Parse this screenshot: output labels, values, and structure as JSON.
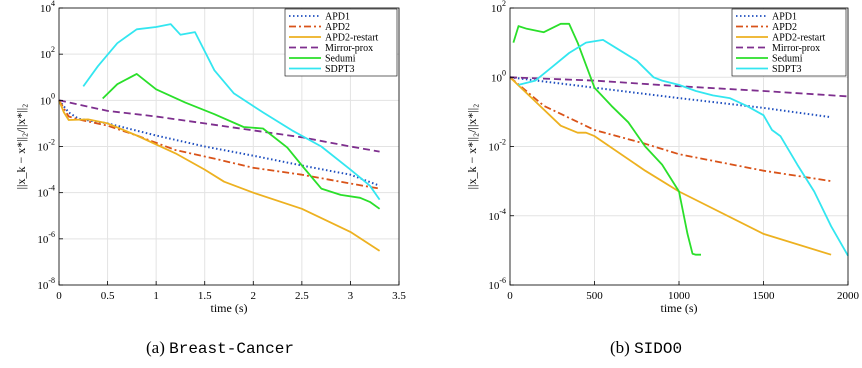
{
  "chart_data": [
    {
      "type": "line",
      "caption_prefix": "(a)",
      "caption_name": "Breast-Cancer",
      "xlabel": "time (s)",
      "ylabel": "||x_k − x*||₂/||x*||₂",
      "xlim": [
        0,
        3.5
      ],
      "ylim_log10": [
        -8,
        4
      ],
      "y_scale": "log",
      "grid": true,
      "legend_position": "top-right",
      "xticks": [
        0,
        0.5,
        1,
        1.5,
        2,
        2.5,
        3,
        3.5
      ],
      "xtick_labels": [
        "0",
        "0.5",
        "1",
        "1.5",
        "2",
        "2.5",
        "3",
        "3.5"
      ],
      "yticks_exp": [
        -8,
        -6,
        -4,
        -2,
        0,
        2,
        4
      ],
      "series": [
        {
          "name": "APD1",
          "color": "#1f4fbf",
          "dash": "dotted",
          "x": [
            0,
            0.1,
            0.2,
            0.5,
            1,
            1.5,
            2,
            2.5,
            3,
            3.3
          ],
          "y": [
            1,
            0.3,
            0.16,
            0.1,
            0.03,
            0.01,
            0.004,
            0.0015,
            0.0006,
            0.0002
          ]
        },
        {
          "name": "APD2",
          "color": "#d95319",
          "dash": "dashdot",
          "x": [
            0,
            0.1,
            0.2,
            0.5,
            0.8,
            1.2,
            1.6,
            2,
            2.5,
            3,
            3.3
          ],
          "y": [
            1,
            0.2,
            0.15,
            0.08,
            0.03,
            0.007,
            0.003,
            0.0012,
            0.0006,
            0.00025,
            0.00015
          ]
        },
        {
          "name": "APD2-restart",
          "color": "#edb120",
          "dash": "solid",
          "x": [
            0,
            0.05,
            0.1,
            0.3,
            0.5,
            0.8,
            1.2,
            1.5,
            1.7,
            2,
            2.5,
            3,
            3.3
          ],
          "y": [
            1,
            0.3,
            0.14,
            0.15,
            0.1,
            0.03,
            0.005,
            0.001,
            0.0003,
            0.0001,
            2e-05,
            2e-06,
            3e-07
          ]
        },
        {
          "name": "Mirror-prox",
          "color": "#7e2f8e",
          "dash": "dashed",
          "x": [
            0,
            0.5,
            1,
            1.5,
            2,
            2.5,
            3,
            3.3
          ],
          "y": [
            1,
            0.35,
            0.2,
            0.1,
            0.05,
            0.025,
            0.01,
            0.006
          ]
        },
        {
          "name": "Sedumi",
          "color": "#2adf2a",
          "dash": "solid",
          "x": [
            0.45,
            0.6,
            0.8,
            1,
            1.3,
            1.6,
            1.9,
            2.1,
            2.35,
            2.5,
            2.7,
            2.9,
            3.1,
            3.2,
            3.3
          ],
          "y": [
            1.2,
            5,
            14,
            3,
            0.8,
            0.25,
            0.07,
            0.06,
            0.009,
            0.0015,
            0.00015,
            8e-05,
            6e-05,
            4e-05,
            2e-05
          ]
        },
        {
          "name": "SDPT3",
          "color": "#33e6f0",
          "dash": "solid",
          "x": [
            0.25,
            0.4,
            0.6,
            0.8,
            1,
            1.15,
            1.25,
            1.4,
            1.6,
            1.8,
            2.1,
            2.4,
            2.7,
            3,
            3.2,
            3.3
          ],
          "y": [
            4,
            30,
            300,
            1200,
            1500,
            2000,
            700,
            900,
            20,
            2,
            0.3,
            0.05,
            0.01,
            0.001,
            0.0002,
            5e-05
          ]
        }
      ]
    },
    {
      "type": "line",
      "caption_prefix": "(b)",
      "caption_name": "SIDO0",
      "xlabel": "time (s)",
      "ylabel": "||x_k − x*||₂/||x*||₂",
      "xlim": [
        0,
        2000
      ],
      "ylim_log10": [
        -6,
        2
      ],
      "y_scale": "log",
      "grid": true,
      "legend_position": "top-right",
      "xticks": [
        0,
        500,
        1000,
        1500,
        2000
      ],
      "xtick_labels": [
        "0",
        "500",
        "1000",
        "1500",
        "2000"
      ],
      "yticks_exp": [
        -6,
        -4,
        -2,
        0,
        2
      ],
      "series": [
        {
          "name": "APD1",
          "color": "#1f4fbf",
          "dash": "dotted",
          "x": [
            0,
            500,
            1000,
            1500,
            1900
          ],
          "y": [
            1,
            0.5,
            0.25,
            0.13,
            0.07
          ]
        },
        {
          "name": "APD2",
          "color": "#d95319",
          "dash": "dashdot",
          "x": [
            0,
            200,
            500,
            800,
            1000,
            1500,
            1900
          ],
          "y": [
            1,
            0.15,
            0.03,
            0.012,
            0.006,
            0.002,
            0.001
          ]
        },
        {
          "name": "APD2-restart",
          "color": "#edb120",
          "dash": "solid",
          "x": [
            0,
            150,
            300,
            400,
            450,
            500,
            800,
            1000,
            1500,
            1900
          ],
          "y": [
            1,
            0.2,
            0.04,
            0.025,
            0.025,
            0.02,
            0.002,
            0.0005,
            3e-05,
            7.5e-06
          ]
        },
        {
          "name": "Mirror-prox",
          "color": "#7e2f8e",
          "dash": "dashed",
          "x": [
            0,
            500,
            1000,
            1500,
            2000
          ],
          "y": [
            1,
            0.8,
            0.55,
            0.4,
            0.28
          ]
        },
        {
          "name": "Sedumi",
          "color": "#2adf2a",
          "dash": "solid",
          "x": [
            20,
            50,
            100,
            200,
            300,
            350,
            400,
            500,
            600,
            700,
            800,
            900,
            1000,
            1050,
            1080,
            1100,
            1130
          ],
          "y": [
            10,
            30,
            25,
            20,
            35,
            35,
            10,
            0.5,
            0.15,
            0.05,
            0.01,
            0.003,
            0.0005,
            3e-05,
            8e-06,
            7.5e-06,
            7.5e-06
          ]
        },
        {
          "name": "SDPT3",
          "color": "#33e6f0",
          "dash": "solid",
          "x": [
            50,
            150,
            250,
            350,
            450,
            550,
            650,
            750,
            850,
            900,
            1000,
            1100,
            1200,
            1300,
            1400,
            1500,
            1550,
            1600,
            1700,
            1800,
            1900,
            2000
          ],
          "y": [
            0.6,
            0.8,
            2,
            5,
            10,
            12,
            6,
            3,
            1,
            0.8,
            0.6,
            0.4,
            0.3,
            0.25,
            0.15,
            0.08,
            0.03,
            0.02,
            0.003,
            0.0005,
            5e-05,
            7e-06
          ]
        }
      ]
    }
  ]
}
